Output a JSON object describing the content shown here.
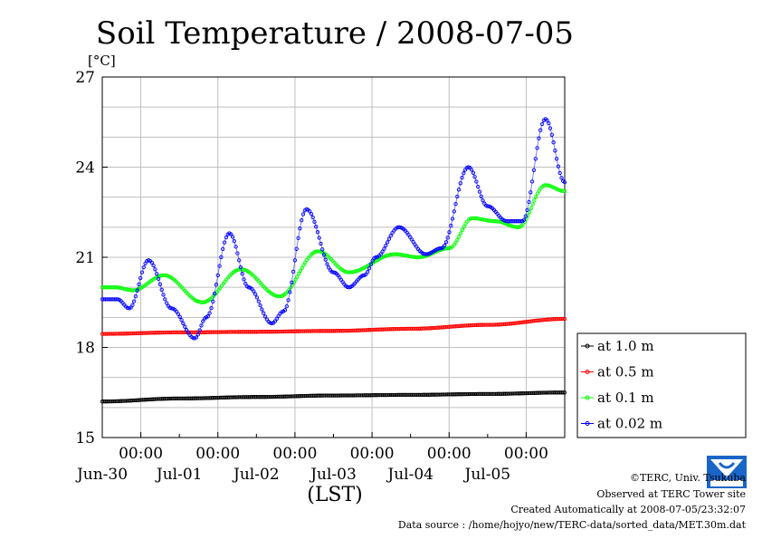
{
  "chart_data": {
    "type": "line",
    "title": "Soil Temperature / 2008-07-05",
    "unit_label": "[°C]",
    "xlabel": "(LST)",
    "ylim": [
      15,
      27
    ],
    "yticks": [
      15,
      18,
      21,
      24,
      27
    ],
    "xlim": [
      0,
      6
    ],
    "xtick_hour_label": "00:00",
    "xtick_days": [
      "Jun-30",
      "Jul-01",
      "Jul-02",
      "Jul-03",
      "Jul-04",
      "Jul-05"
    ],
    "x_unit_note": "days from 2008-06-29 12:00 LST",
    "grid": true,
    "legend_position": "right",
    "series": [
      {
        "name": "at 1.0 m",
        "color": "#000000",
        "x": [
          0,
          1,
          2,
          3,
          4,
          5,
          6
        ],
        "y": [
          16.2,
          16.3,
          16.35,
          16.4,
          16.42,
          16.45,
          16.5
        ]
      },
      {
        "name": "at 0.5 m",
        "color": "#ff0000",
        "x": [
          0,
          1,
          2,
          3,
          4,
          5,
          6
        ],
        "y": [
          18.45,
          18.5,
          18.52,
          18.55,
          18.62,
          18.75,
          18.95
        ]
      },
      {
        "name": "at 0.1 m",
        "color": "#00ff00",
        "x": [
          0,
          0.17,
          0.4,
          0.8,
          1.3,
          1.8,
          2.3,
          2.8,
          3.2,
          3.8,
          4.1,
          4.5,
          4.8,
          5.1,
          5.4,
          5.75,
          6
        ],
        "y": [
          20.0,
          20.0,
          19.9,
          20.4,
          19.5,
          20.6,
          19.7,
          21.2,
          20.5,
          21.1,
          21.0,
          21.3,
          22.3,
          22.2,
          22.0,
          23.4,
          23.2
        ]
      },
      {
        "name": "at 0.02 m",
        "color": "#0000ff",
        "x": [
          0,
          0.2,
          0.35,
          0.6,
          0.9,
          1.2,
          1.35,
          1.65,
          1.9,
          2.2,
          2.35,
          2.65,
          3.0,
          3.2,
          3.4,
          3.55,
          3.85,
          4.2,
          4.4,
          4.75,
          5.0,
          5.25,
          5.45,
          5.75,
          6.0
        ],
        "y": [
          19.6,
          19.6,
          19.3,
          20.9,
          19.3,
          18.3,
          19.0,
          21.8,
          20.0,
          18.8,
          19.2,
          22.6,
          20.5,
          20.0,
          20.4,
          21.0,
          22.0,
          21.1,
          21.3,
          24.0,
          22.7,
          22.2,
          22.2,
          25.6,
          23.5
        ]
      }
    ]
  },
  "credits": {
    "copyright": "©TERC, Univ. Tsukuba",
    "site": "Observed at TERC Tower site",
    "created": "Created Automatically at 2008-07-05/23:32:07",
    "source": "Data source : /home/hojyo/new/TERC-data/sorted_data/MET.30m.dat"
  }
}
